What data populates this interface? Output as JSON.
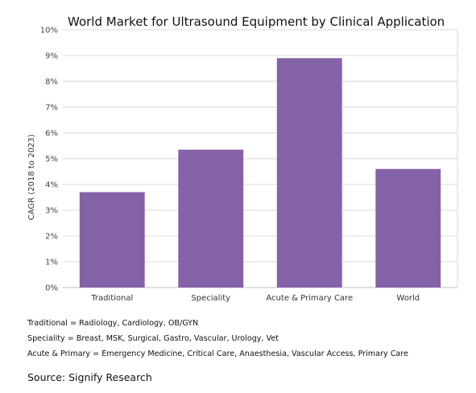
{
  "chart_data": {
    "type": "bar",
    "title": "World Market for Ultrasound Equipment by Clinical Application",
    "xlabel": "",
    "ylabel": "CAGR (2018 to 2023)",
    "categories": [
      "Traditional",
      "Speciality",
      "Acute & Primary Care",
      "World"
    ],
    "values": [
      3.7,
      5.35,
      8.9,
      4.6
    ],
    "ylim": [
      0,
      10
    ],
    "yticks": [
      "0%",
      "1%",
      "2%",
      "3%",
      "4%",
      "5%",
      "6%",
      "7%",
      "8%",
      "9%",
      "10%"
    ],
    "grid": true,
    "bar_color": "#8462a8",
    "grid_color": "#d9d9d9"
  },
  "notes": [
    "Traditional = Radiology, Cardiology, OB/GYN",
    "Speciality = Breast, MSK, Surgical, Gastro, Vascular, Urology, Vet",
    "Acute & Primary = Emergency Medicine, Critical Care, Anaesthesia, Vascular Access, Primary Care"
  ],
  "source": "Source: Signify Research"
}
